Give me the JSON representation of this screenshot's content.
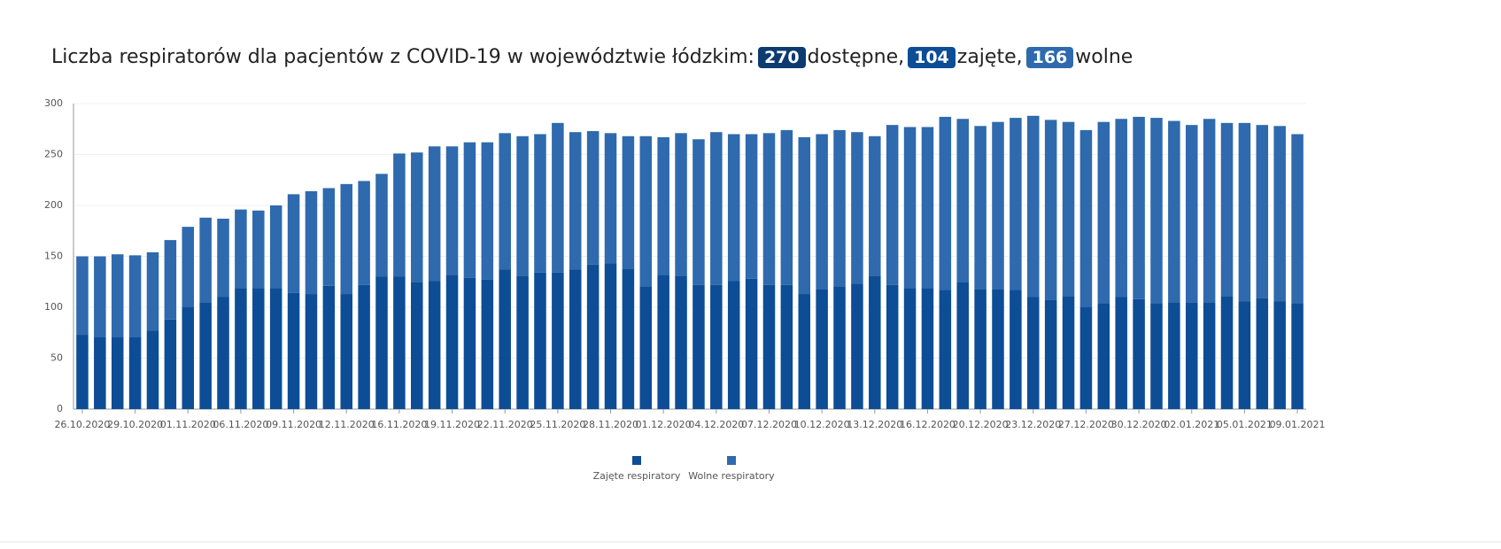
{
  "chart_data": {
    "type": "stacked_bar",
    "title": "Liczba respiratorów dla pacjentów z COVID-19 w województwie łódzkim:",
    "badges": [
      {
        "value": 270,
        "label": "dostępne,",
        "color": "#0d3b70"
      },
      {
        "value": 104,
        "label": "zajęte,",
        "color": "#0c4d96"
      },
      {
        "value": 166,
        "label": "wolne",
        "color": "#2e6aad"
      }
    ],
    "categories": [
      "26.10.2020",
      null,
      null,
      "29.10.2020",
      null,
      null,
      "01.11.2020",
      null,
      null,
      "06.11.2020",
      null,
      null,
      "09.11.2020",
      null,
      null,
      "12.11.2020",
      null,
      null,
      "16.11.2020",
      null,
      null,
      "19.11.2020",
      null,
      null,
      "22.11.2020",
      null,
      null,
      "25.11.2020",
      null,
      null,
      "28.11.2020",
      null,
      null,
      "01.12.2020",
      null,
      null,
      "04.12.2020",
      null,
      null,
      "07.12.2020",
      null,
      null,
      "10.12.2020",
      null,
      null,
      "13.12.2020",
      null,
      null,
      "16.12.2020",
      null,
      null,
      "20.12.2020",
      null,
      null,
      "23.12.2020",
      null,
      null,
      "27.12.2020",
      null,
      null,
      "30.12.2020",
      null,
      null,
      "02.01.2021",
      null,
      null,
      "05.01.2021",
      null,
      null,
      "09.01.2021"
    ],
    "series": [
      {
        "name": "Zajęte respiratory",
        "color": "#0c4d96",
        "values": [
          73,
          71,
          71,
          71,
          77,
          88,
          100,
          105,
          110,
          119,
          119,
          119,
          114,
          113,
          121,
          113,
          122,
          130,
          130,
          125,
          126,
          132,
          129,
          127,
          137,
          131,
          134,
          134,
          137,
          142,
          143,
          138,
          120,
          132,
          131,
          122,
          122,
          126,
          128,
          122,
          122,
          113,
          118,
          120,
          123,
          131,
          122,
          119,
          119,
          117,
          125,
          118,
          118,
          117,
          110,
          107,
          111,
          100,
          104,
          110,
          108,
          104,
          105,
          105,
          105,
          111,
          106,
          109,
          106,
          104
        ]
      },
      {
        "name": "Wolne respiratory",
        "color": "#2e6aad",
        "values": [
          77,
          79,
          81,
          80,
          77,
          78,
          79,
          83,
          77,
          77,
          76,
          81,
          97,
          101,
          96,
          108,
          102,
          101,
          121,
          127,
          132,
          126,
          133,
          135,
          134,
          137,
          136,
          147,
          135,
          131,
          128,
          130,
          148,
          135,
          140,
          143,
          150,
          144,
          142,
          149,
          152,
          154,
          152,
          154,
          149,
          137,
          157,
          158,
          158,
          170,
          160,
          160,
          164,
          169,
          178,
          177,
          171,
          174,
          178,
          175,
          179,
          182,
          178,
          174,
          180,
          170,
          175,
          170,
          172,
          166
        ]
      }
    ],
    "ylim": [
      0,
      300
    ],
    "yticks": [
      0,
      50,
      100,
      150,
      200,
      250,
      300
    ],
    "grid": true
  }
}
